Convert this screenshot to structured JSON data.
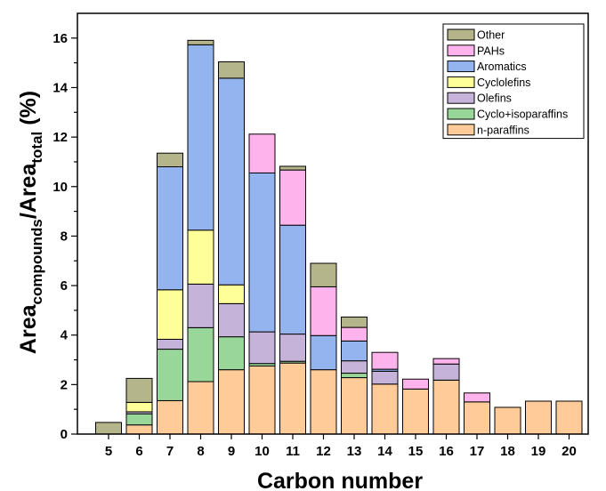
{
  "chart_data": {
    "type": "bar",
    "stacked": true,
    "title": "",
    "xlabel": "Carbon number",
    "ylabel": {
      "main": "Area",
      "sub1": "compounds",
      "sep": "/Area",
      "sub2": "total",
      "unit": " (%)"
    },
    "ylim": [
      0,
      17
    ],
    "yticks": [
      0,
      2,
      4,
      6,
      8,
      10,
      12,
      14,
      16
    ],
    "grid": false,
    "legend_position": "top-right",
    "categories": [
      "5",
      "6",
      "7",
      "8",
      "9",
      "10",
      "11",
      "12",
      "13",
      "14",
      "15",
      "16",
      "17",
      "18",
      "19",
      "20"
    ],
    "series": [
      {
        "name": "n-paraffins",
        "color": "#FFCC99",
        "values": [
          0,
          0.37,
          1.35,
          2.12,
          2.6,
          2.75,
          2.87,
          2.6,
          2.28,
          2.02,
          1.82,
          2.18,
          1.3,
          1.08,
          1.33,
          1.33
        ]
      },
      {
        "name": "Cyclo+isoparaffins",
        "color": "#99D699",
        "values": [
          0,
          0.45,
          2.08,
          2.18,
          1.33,
          0.1,
          0.07,
          0,
          0.18,
          0,
          0,
          0,
          0,
          0,
          0,
          0
        ]
      },
      {
        "name": "Olefins",
        "color": "#C5B3D9",
        "values": [
          0,
          0.08,
          0.4,
          1.76,
          1.34,
          1.28,
          1.1,
          0,
          0.5,
          0.52,
          0,
          0.65,
          0,
          0,
          0,
          0
        ]
      },
      {
        "name": "Cyclolefins",
        "color": "#FFFF99",
        "values": [
          0,
          0.38,
          2.0,
          2.18,
          0.76,
          0,
          0,
          0,
          0,
          0,
          0,
          0,
          0,
          0,
          0,
          0
        ]
      },
      {
        "name": "Aromatics",
        "color": "#94B4F0",
        "values": [
          0,
          0,
          4.97,
          7.49,
          8.35,
          6.42,
          4.4,
          1.38,
          0.8,
          0.08,
          0,
          0,
          0,
          0,
          0,
          0
        ]
      },
      {
        "name": "PAHs",
        "color": "#FFB3EC",
        "values": [
          0,
          0,
          0,
          0,
          0,
          1.57,
          2.23,
          1.97,
          0.55,
          0.68,
          0.4,
          0.22,
          0.36,
          0,
          0,
          0
        ]
      },
      {
        "name": "Other",
        "color": "#B5B58C",
        "values": [
          0.47,
          0.97,
          0.55,
          0.18,
          0.66,
          0,
          0.15,
          0.95,
          0.42,
          0,
          0,
          0,
          0,
          0,
          0,
          0
        ]
      }
    ],
    "legend_order": [
      "Other",
      "PAHs",
      "Aromatics",
      "Cyclolefins",
      "Olefins",
      "Cyclo+isoparaffins",
      "n-paraffins"
    ]
  }
}
